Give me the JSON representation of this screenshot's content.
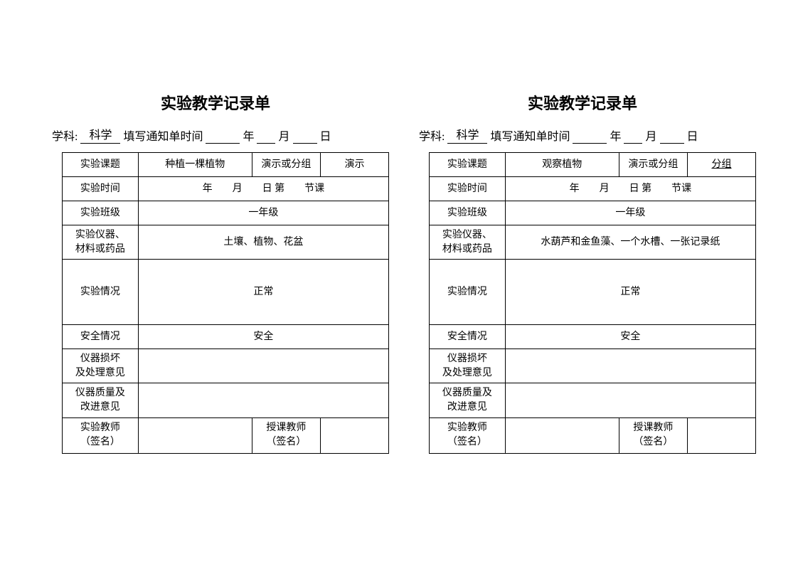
{
  "forms": [
    {
      "title": "实验教学记录单",
      "header": {
        "subject_label": "学科:",
        "subject_value": "科学",
        "time_label_prefix": "填写通知单时间",
        "year_suffix": "年",
        "month_suffix": "月",
        "day_suffix": "日"
      },
      "rows": {
        "topic_label": "实验课题",
        "topic_value": "种植一棵植物",
        "type_label": "演示或分组",
        "type_value": "演示",
        "type_underlined": false,
        "time_label": "实验时间",
        "time_value": "年　　月　　日  第　　节课",
        "class_label": "实验班级",
        "class_value": "一年级",
        "equipment_label_1": "实验仪器、",
        "equipment_label_2": "材料或药品",
        "equipment_value": "土壤、植物、花盆",
        "status_label": "实验情况",
        "status_value": "正常",
        "safety_label": "安全情况",
        "safety_value": "安全",
        "damage_label_1": "仪器损坏",
        "damage_label_2": "及处理意见",
        "damage_value": "",
        "quality_label_1": "仪器质量及",
        "quality_label_2": "改进意见",
        "quality_value": "",
        "sign1_label_1": "实验教师",
        "sign1_label_2": "（签名）",
        "sign1_value": "",
        "sign2_label_1": "授课教师",
        "sign2_label_2": "（签名）",
        "sign2_value": ""
      }
    },
    {
      "title": "实验教学记录单",
      "header": {
        "subject_label": "学科:",
        "subject_value": "科学",
        "time_label_prefix": "填写通知单时间",
        "year_suffix": "年",
        "month_suffix": "月",
        "day_suffix": "日"
      },
      "rows": {
        "topic_label": "实验课题",
        "topic_value": "观察植物",
        "type_label": "演示或分组",
        "type_value": "分组",
        "type_underlined": true,
        "time_label": "实验时间",
        "time_value": "年　　月　　日  第　　节课",
        "class_label": "实验班级",
        "class_value": "一年级",
        "equipment_label_1": "实验仪器、",
        "equipment_label_2": "材料或药品",
        "equipment_value": "水葫芦和金鱼藻、一个水槽、一张记录纸",
        "status_label": "实验情况",
        "status_value": "正常",
        "safety_label": "安全情况",
        "safety_value": "安全",
        "damage_label_1": "仪器损坏",
        "damage_label_2": "及处理意见",
        "damage_value": "",
        "quality_label_1": "仪器质量及",
        "quality_label_2": "改进意见",
        "quality_value": "",
        "sign1_label_1": "实验教师",
        "sign1_label_2": "（签名）",
        "sign1_value": "",
        "sign2_label_1": "授课教师",
        "sign2_label_2": "（签名）",
        "sign2_value": ""
      }
    }
  ]
}
